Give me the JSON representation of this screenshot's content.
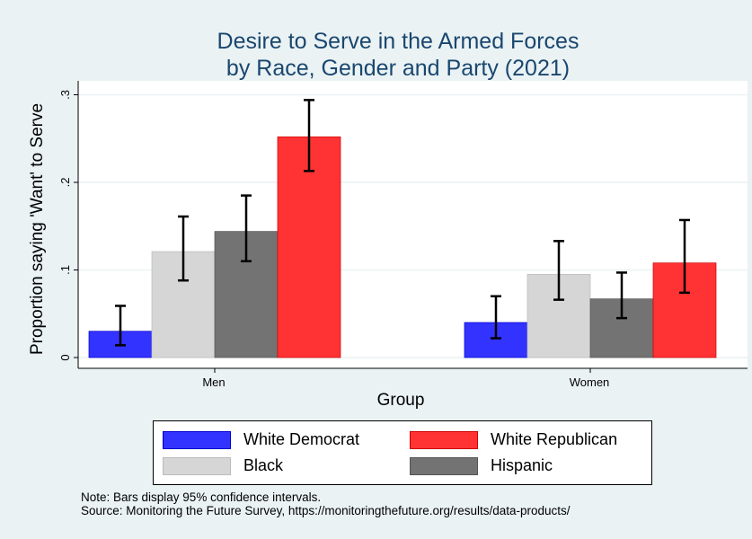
{
  "chart_data": {
    "type": "bar",
    "title": [
      "Desire to Serve in the Armed Forces",
      "by Race, Gender and Party (2021)"
    ],
    "xlabel": "Group",
    "ylabel": "Proportion saying 'Want' to Serve",
    "ylim": [
      0,
      0.3
    ],
    "yticks": [
      {
        "v": 0,
        "label": "0"
      },
      {
        "v": 0.1,
        "label": ".1"
      },
      {
        "v": 0.2,
        "label": ".2"
      },
      {
        "v": 0.3,
        "label": ".3"
      }
    ],
    "categories": [
      "Men",
      "Women"
    ],
    "series": [
      {
        "name": "White Democrat",
        "color": "#3333ff",
        "values": [
          0.03,
          0.04
        ],
        "ci_low": [
          0.014,
          0.022
        ],
        "ci_high": [
          0.059,
          0.07
        ]
      },
      {
        "name": "Black",
        "color": "#d6d6d6",
        "values": [
          0.121,
          0.095
        ],
        "ci_low": [
          0.088,
          0.066
        ],
        "ci_high": [
          0.161,
          0.133
        ]
      },
      {
        "name": "Hispanic",
        "color": "#737373",
        "values": [
          0.144,
          0.067
        ],
        "ci_low": [
          0.11,
          0.045
        ],
        "ci_high": [
          0.185,
          0.097
        ]
      },
      {
        "name": "White Republican",
        "color": "#ff3333",
        "values": [
          0.252,
          0.108
        ],
        "ci_low": [
          0.213,
          0.074
        ],
        "ci_high": [
          0.294,
          0.157
        ]
      }
    ],
    "grid": true,
    "legend_position": "bottom"
  },
  "notes": [
    "Note: Bars display 95% confidence intervals.",
    "Source: Monitoring the Future Survey, https://monitoringthefuture.org/results/data-products/"
  ]
}
